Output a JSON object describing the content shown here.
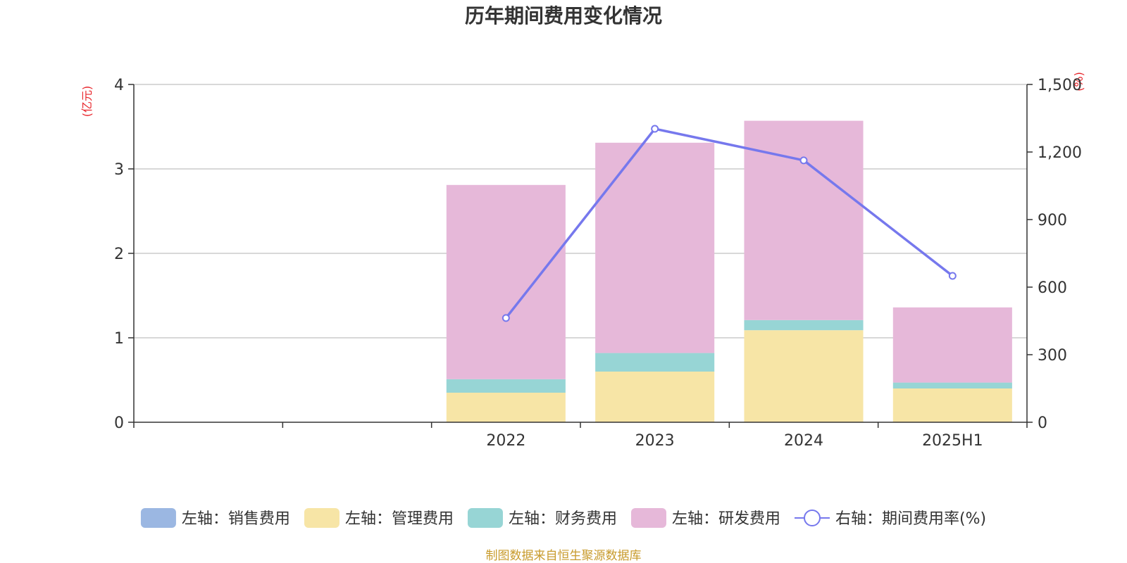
{
  "chart_data": {
    "type": "bar",
    "title": "历年期间费用变化情况",
    "left_unit": "(亿元)",
    "right_unit": "(%)",
    "categories": [
      "",
      "",
      "2022",
      "2023",
      "2024",
      "2025H1"
    ],
    "ylim_left": [
      0,
      4
    ],
    "yticks_left": [
      "0",
      "1",
      "2",
      "3",
      "4"
    ],
    "ylim_right": [
      0,
      1500
    ],
    "yticks_right": [
      "0",
      "300",
      "600",
      "900",
      "1,200",
      "1,500"
    ],
    "grid": true,
    "legend_position": "bottom",
    "series": [
      {
        "name": "左轴：销售费用",
        "axis": "left",
        "kind": "bar",
        "color": "#9bb7e2",
        "values": [
          null,
          null,
          0,
          0,
          0,
          0
        ]
      },
      {
        "name": "左轴：管理费用",
        "axis": "left",
        "kind": "bar",
        "color": "#f7e5a6",
        "values": [
          null,
          null,
          0.35,
          0.6,
          1.09,
          0.4
        ]
      },
      {
        "name": "左轴：财务费用",
        "axis": "left",
        "kind": "bar",
        "color": "#97d5d5",
        "values": [
          null,
          null,
          0.16,
          0.22,
          0.12,
          0.07
        ]
      },
      {
        "name": "左轴：研发费用",
        "axis": "left",
        "kind": "bar",
        "color": "#e6b8d9",
        "values": [
          null,
          null,
          2.3,
          2.49,
          2.36,
          0.89
        ]
      },
      {
        "name": "右轴：期间费用率(%)",
        "axis": "right",
        "kind": "line",
        "color": "#7678ed",
        "values": [
          null,
          null,
          463,
          1303,
          1163,
          650
        ]
      }
    ]
  },
  "footer": {
    "source": "制图数据来自恒生聚源数据库"
  }
}
